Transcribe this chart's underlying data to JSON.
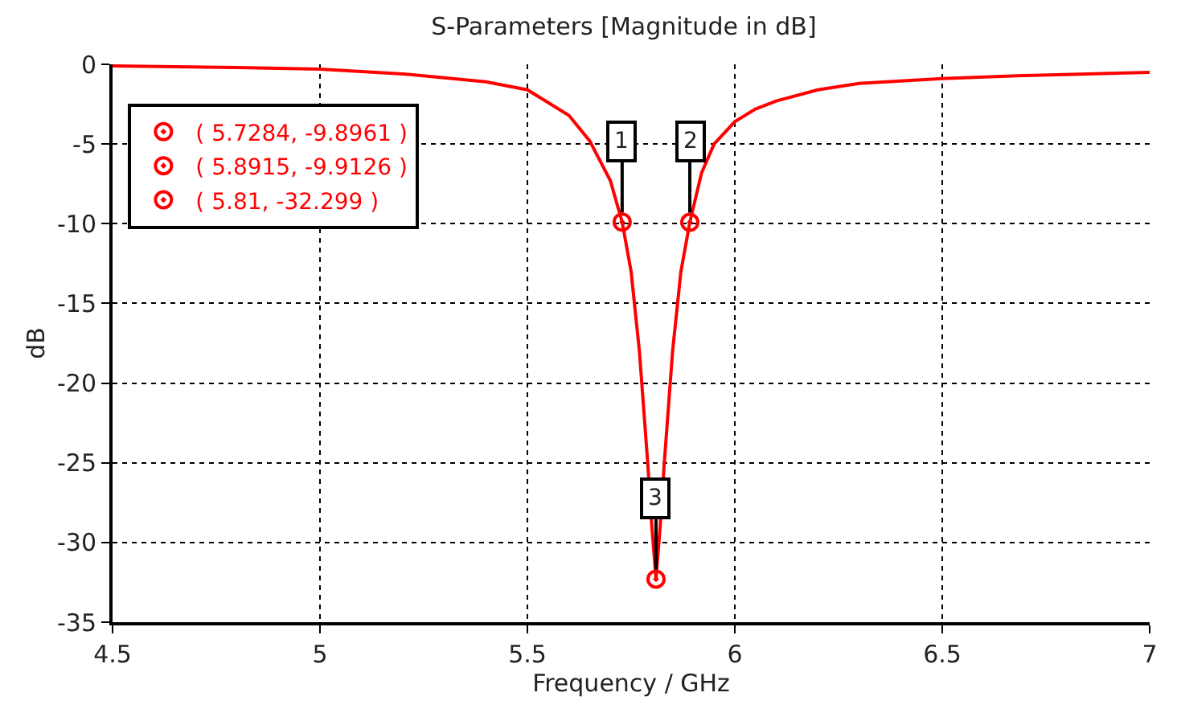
{
  "chart_data": {
    "type": "line",
    "title": "S-Parameters [Magnitude in dB]",
    "xlabel": "Frequency / GHz",
    "ylabel": "dB",
    "xlim": [
      4.5,
      7
    ],
    "xticks": [
      4.5,
      5,
      5.5,
      6,
      6.5,
      7
    ],
    "ylim": [
      -35,
      0
    ],
    "yticks": [
      -35,
      -30,
      -25,
      -20,
      -15,
      -10,
      -5,
      0
    ],
    "grid": true,
    "legend": "top left",
    "series": [
      {
        "color": "#ff0000",
        "marker": "none",
        "line_style": "solid",
        "x": [
          4.5,
          4.8,
          5.0,
          5.2,
          5.4,
          5.5,
          5.6,
          5.65,
          5.7,
          5.7284,
          5.75,
          5.77,
          5.79,
          5.8,
          5.81,
          5.82,
          5.83,
          5.85,
          5.87,
          5.8915,
          5.92,
          5.95,
          6.0,
          6.05,
          6.1,
          6.2,
          6.3,
          6.5,
          6.7,
          7.0
        ],
        "values": [
          -0.1,
          -0.2,
          -0.3,
          -0.6,
          -1.1,
          -1.6,
          -3.2,
          -4.8,
          -7.3,
          -9.8961,
          -13,
          -18,
          -25,
          -29,
          -32.299,
          -29,
          -25,
          -18,
          -13,
          -9.9126,
          -6.8,
          -5,
          -3.6,
          -2.8,
          -2.3,
          -1.6,
          -1.2,
          -0.9,
          -0.7,
          -0.5
        ]
      },
      {
        "type": "scatter",
        "name": "( 5.7284, -9.8961 )",
        "color": "#ff0000",
        "marker": "circle",
        "x": [
          5.7284
        ],
        "values": [
          -9.8961
        ]
      },
      {
        "type": "scatter",
        "name": "( 5.8915, -9.9126 )",
        "color": "#ff0000",
        "marker": "circle",
        "x": [
          5.8915
        ],
        "values": [
          -9.9126
        ]
      },
      {
        "type": "scatter",
        "name": "( 5.81, -32.299 )",
        "color": "#ff0000",
        "marker": "circle",
        "x": [
          5.81
        ],
        "values": [
          -32.299
        ]
      }
    ],
    "annotations": [
      {
        "text": "1",
        "x": 5.7284,
        "y": -9.8961
      },
      {
        "text": "2",
        "x": 5.8915,
        "y": -9.9126
      },
      {
        "text": "3",
        "x": 5.81,
        "y": -32.299
      }
    ]
  }
}
